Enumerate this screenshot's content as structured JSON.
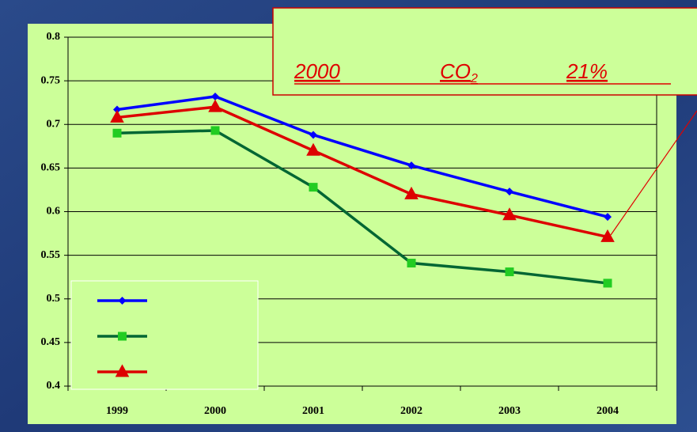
{
  "chart_data": {
    "type": "line",
    "annotation": {
      "year": "2000",
      "gas": "CO",
      "subscript": "2",
      "percent": "21%"
    },
    "categories": [
      "1999",
      "2000",
      "2001",
      "2002",
      "2003",
      "2004"
    ],
    "series": [
      {
        "color": "#0000ff",
        "marker": "diamond",
        "values": [
          0.717,
          0.732,
          0.688,
          0.653,
          0.623,
          0.594
        ]
      },
      {
        "color": "#006633",
        "marker_color": "#22cc22",
        "marker": "square",
        "values": [
          0.69,
          0.693,
          0.628,
          0.541,
          0.531,
          0.518
        ]
      },
      {
        "color": "#dd0000",
        "marker": "triangle",
        "values": [
          0.708,
          0.72,
          0.67,
          0.62,
          0.596,
          0.571
        ]
      }
    ],
    "ylim": [
      0.4,
      0.8
    ],
    "yticks": [
      0.4,
      0.45,
      0.5,
      0.55,
      0.6,
      0.65,
      0.7,
      0.75,
      0.8
    ],
    "grid": true
  }
}
